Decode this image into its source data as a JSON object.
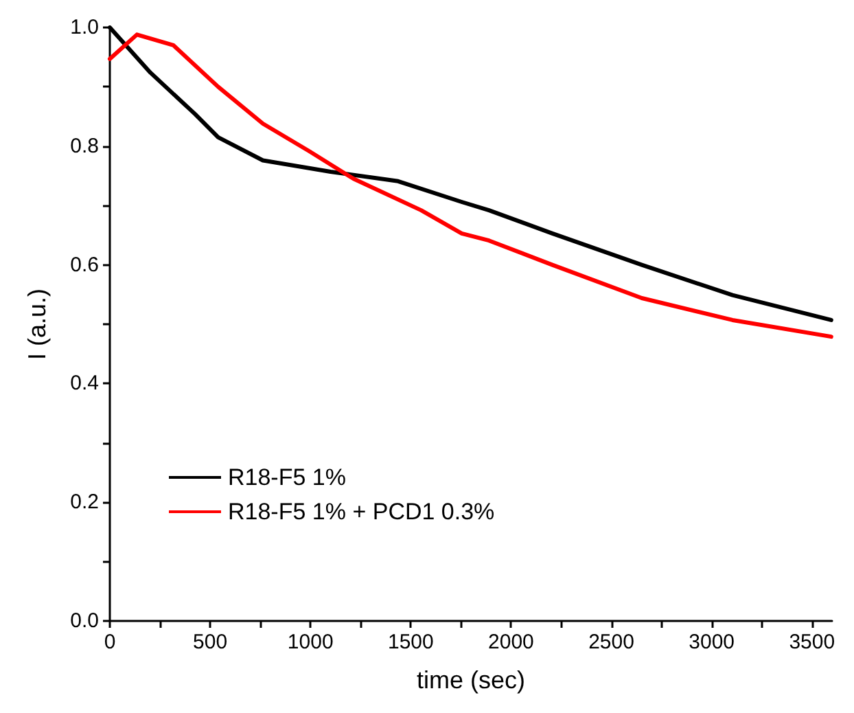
{
  "chart_data": {
    "type": "line",
    "xlabel": "time (sec)",
    "ylabel": "I (a.u.)",
    "xlim": [
      0,
      3600
    ],
    "ylim": [
      0,
      1
    ],
    "xticks": [
      0,
      {
        "value": 250,
        "label": null
      },
      500,
      {
        "value": 750,
        "label": null
      },
      1000,
      {
        "value": 1250,
        "label": null
      },
      1500,
      {
        "value": 1750,
        "label": null
      },
      2000,
      {
        "value": 2250,
        "label": null
      },
      2500,
      {
        "value": 2750,
        "label": null
      },
      3000,
      {
        "value": 3250,
        "label": null
      },
      3500
    ],
    "yticks": [
      {
        "value": 0,
        "label": "0.0"
      },
      {
        "value": 0.1,
        "label": null
      },
      0.2,
      {
        "value": 0.3,
        "label": null
      },
      0.4,
      {
        "value": 0.5,
        "label": null
      },
      0.6,
      {
        "value": 0.7,
        "label": null
      },
      0.8,
      {
        "value": 0.9,
        "label": null
      },
      {
        "value": 1,
        "label": "1.0"
      }
    ],
    "grid": false,
    "legend": "bottom left",
    "marker": "none",
    "line_style": "solid",
    "series": [
      {
        "name": "R18-F5 1%",
        "color": "#000000",
        "x": [
          0,
          202,
          425,
          540,
          763,
          1100,
          1437,
          1754,
          1890,
          2206,
          2652,
          3104,
          3596
        ],
        "values": [
          1.0,
          0.924,
          0.854,
          0.815,
          0.776,
          0.757,
          0.741,
          0.706,
          0.692,
          0.653,
          0.6,
          0.549,
          0.507
        ]
      },
      {
        "name": "R18-F5 1% + PCD1 0.3%",
        "color": "#ff0000",
        "x": [
          0,
          135,
          317,
          540,
          763,
          992,
          1215,
          1552,
          1754,
          1890,
          2206,
          2652,
          3104,
          3596
        ],
        "values": [
          0.947,
          0.988,
          0.97,
          0.9,
          0.838,
          0.792,
          0.745,
          0.692,
          0.653,
          0.641,
          0.6,
          0.544,
          0.507,
          0.479
        ]
      }
    ]
  }
}
